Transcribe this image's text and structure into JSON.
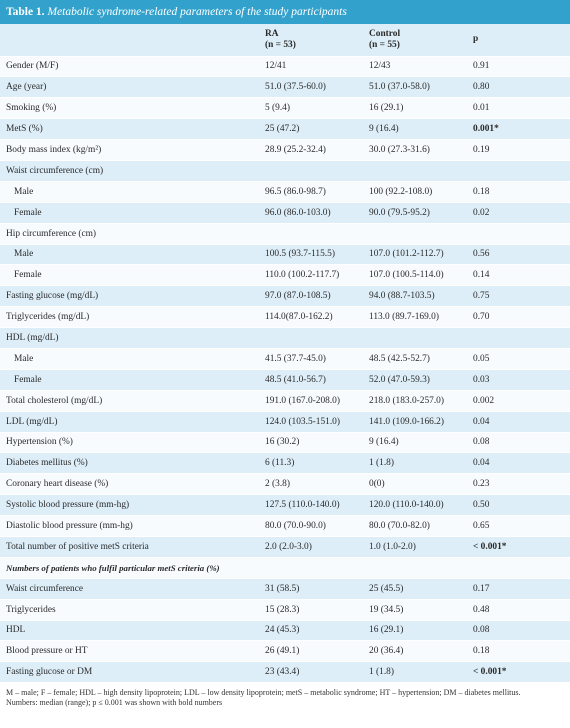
{
  "caption": {
    "label": "Table 1.",
    "title": "Metabolic syndrome-related parameters of the study participants"
  },
  "headers": {
    "col2_line1": "RA",
    "col2_line2": "(n = 53)",
    "col3_line1": "Control",
    "col3_line2": "(n = 55)",
    "col4": "p"
  },
  "rows": [
    {
      "label": "Gender (M/F)",
      "ra": "12/41",
      "control": "12/43",
      "p": "0.91"
    },
    {
      "label": "Age (year)",
      "ra": "51.0 (37.5-60.0)",
      "control": "51.0 (37.0-58.0)",
      "p": "0.80"
    },
    {
      "label": "Smoking (%)",
      "ra": "5 (9.4)",
      "control": "16 (29.1)",
      "p": "0.01"
    },
    {
      "label": "MetS (%)",
      "ra": "25 (47.2)",
      "control": "9 (16.4)",
      "p": "0.001*"
    },
    {
      "label": "Body mass index (kg/m²)",
      "ra": "28.9 (25.2-32.4)",
      "control": "30.0 (27.3-31.6)",
      "p": "0.19"
    },
    {
      "label": "Waist circumference (cm)",
      "ra": "",
      "control": "",
      "p": ""
    },
    {
      "label": "Male",
      "ra": "96.5 (86.0-98.7)",
      "control": "100 (92.2-108.0)",
      "p": "0.18"
    },
    {
      "label": "Female",
      "ra": "96.0 (86.0-103.0)",
      "control": "90.0 (79.5-95.2)",
      "p": "0.02"
    },
    {
      "label": "Hip circumference (cm)",
      "ra": "",
      "control": "",
      "p": ""
    },
    {
      "label": "Male",
      "ra": "100.5 (93.7-115.5)",
      "control": "107.0 (101.2-112.7)",
      "p": "0.56"
    },
    {
      "label": "Female",
      "ra": "110.0 (100.2-117.7)",
      "control": "107.0 (100.5-114.0)",
      "p": "0.14"
    },
    {
      "label": "Fasting glucose (mg/dL)",
      "ra": "97.0 (87.0-108.5)",
      "control": "94.0 (88.7-103.5)",
      "p": "0.75"
    },
    {
      "label": "Triglycerides (mg/dL)",
      "ra": "114.0(87.0-162.2)",
      "control": "113.0 (89.7-169.0)",
      "p": "0.70"
    },
    {
      "label": "HDL (mg/dL)",
      "ra": "",
      "control": "",
      "p": ""
    },
    {
      "label": "Male",
      "ra": "41.5 (37.7-45.0)",
      "control": "48.5 (42.5-52.7)",
      "p": "0.05"
    },
    {
      "label": "Female",
      "ra": "48.5 (41.0-56.7)",
      "control": "52.0 (47.0-59.3)",
      "p": "0.03"
    },
    {
      "label": "Total cholesterol (mg/dL)",
      "ra": "191.0 (167.0-208.0)",
      "control": "218.0 (183.0-257.0)",
      "p": "0.002"
    },
    {
      "label": "LDL (mg/dL)",
      "ra": "124.0 (103.5-151.0)",
      "control": "141.0 (109.0-166.2)",
      "p": "0.04"
    },
    {
      "label": "Hypertension (%)",
      "ra": "16 (30.2)",
      "control": "9 (16.4)",
      "p": "0.08"
    },
    {
      "label": "Diabetes mellitus (%)",
      "ra": "6 (11.3)",
      "control": "1 (1.8)",
      "p": "0.04"
    },
    {
      "label": "Coronary heart disease (%)",
      "ra": "2 (3.8)",
      "control": "0(0)",
      "p": "0.23"
    },
    {
      "label": "Systolic blood pressure (mm-hg)",
      "ra": "127.5 (110.0-140.0)",
      "control": "120.0 (110.0-140.0)",
      "p": "0.50"
    },
    {
      "label": "Diastolic blood pressure (mm-hg)",
      "ra": "80.0 (70.0-90.0)",
      "control": "80.0 (70.0-82.0)",
      "p": "0.65"
    },
    {
      "label": "Total number of positive metS criteria",
      "ra": "2.0 (2.0-3.0)",
      "control": "1.0 (1.0-2.0)",
      "p": "< 0.001*"
    },
    {
      "label": "Numbers of patients who fulfil particular metS criteria (%)",
      "ra": "",
      "control": "",
      "p": ""
    },
    {
      "label": "Waist circumference",
      "ra": "31 (58.5)",
      "control": "25 (45.5)",
      "p": "0.17"
    },
    {
      "label": "Triglycerides",
      "ra": "15 (28.3)",
      "control": "19 (34.5)",
      "p": "0.48"
    },
    {
      "label": "HDL",
      "ra": "24 (45.3)",
      "control": "16 (29.1)",
      "p": "0.08"
    },
    {
      "label": "Blood pressure or HT",
      "ra": "26 (49.1)",
      "control": "20 (36.4)",
      "p": "0.18"
    },
    {
      "label": "Fasting glucose or DM",
      "ra": "23 (43.4)",
      "control": "1 (1.8)",
      "p": "< 0.001*"
    }
  ],
  "footnotes": {
    "line1": "M – male; F – female; HDL – high density lipoprotein; LDL – low density lipoprotein; metS – metabolic syndrome; HT – hypertension; DM – diabetes mellitus.",
    "line2": "Numbers: median (range); p ≤ 0.001 was shown with bold numbers"
  },
  "colors": {
    "caption_bg": "#32a2cc",
    "row_shaded": "#ddeef8",
    "row_light": "#f7fbfe"
  }
}
